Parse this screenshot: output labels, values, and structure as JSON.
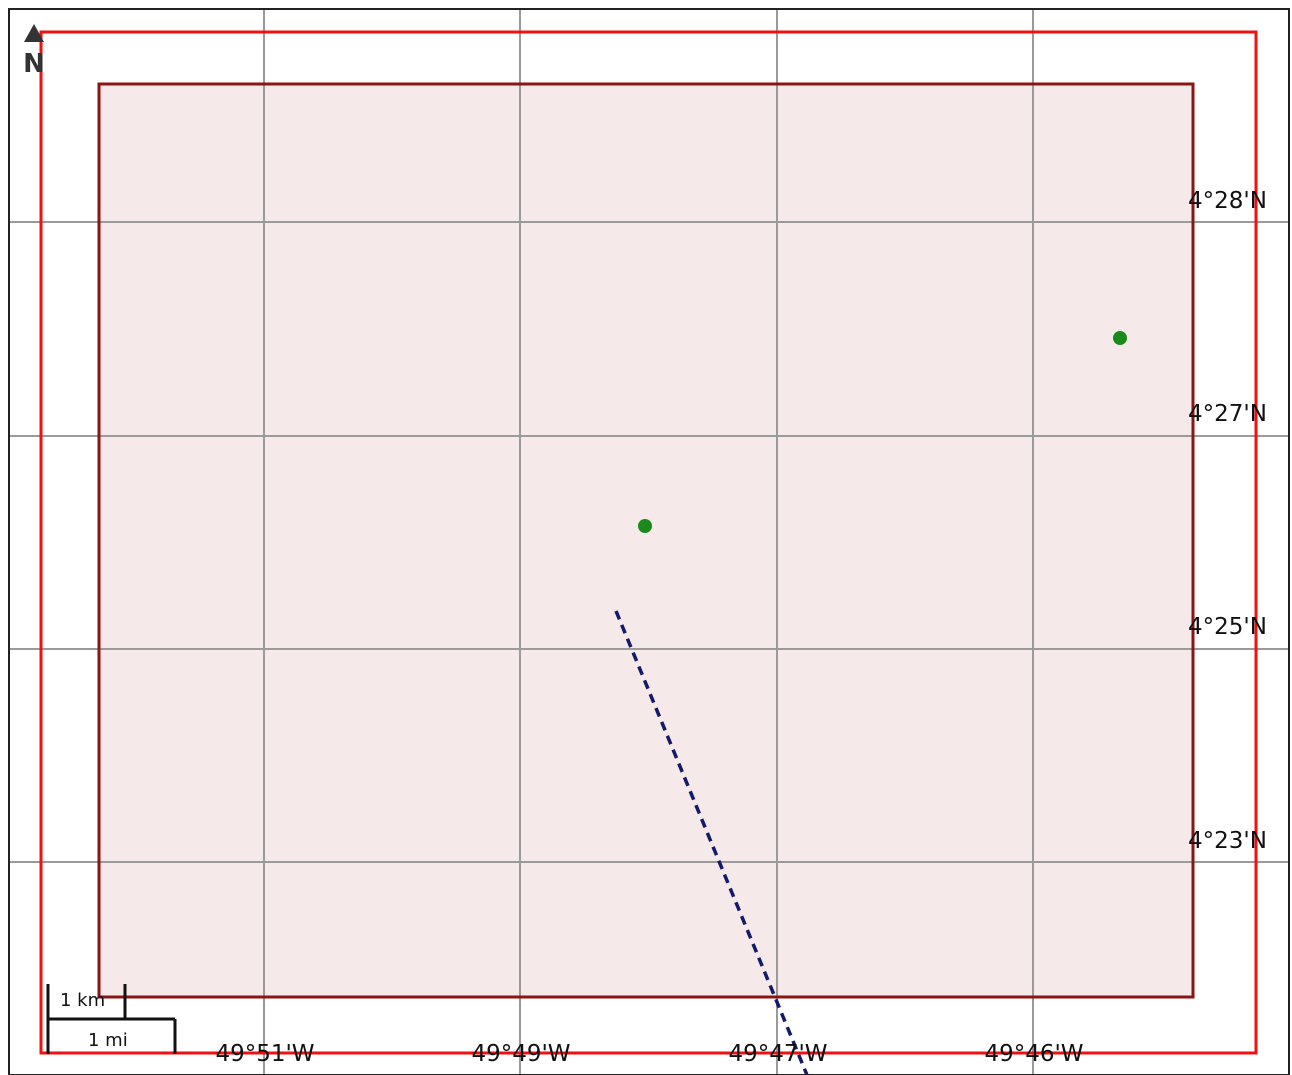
{
  "map": {
    "north_arrow": {
      "label": "N"
    },
    "latitude_labels": [
      "4°28'N",
      "4°27'N",
      "4°25'N",
      "4°23'N"
    ],
    "longitude_labels": [
      "49°51'W",
      "49°49'W",
      "49°47'W",
      "49°46'W"
    ],
    "scale_bar": {
      "metric_label": "1 km",
      "imperial_label": "1 mi"
    },
    "colors": {
      "outer_extent": "#ee1111",
      "area_outline": "#8b1515",
      "area_fill": "#f5e9ea",
      "graticule": "#9a9a9a",
      "point_marker": "#1a8a1a",
      "dashed_route": "#141a6a",
      "frame": "#222222"
    },
    "point_markers": [
      {
        "name": "point-marker-1"
      },
      {
        "name": "point-marker-2"
      }
    ]
  }
}
